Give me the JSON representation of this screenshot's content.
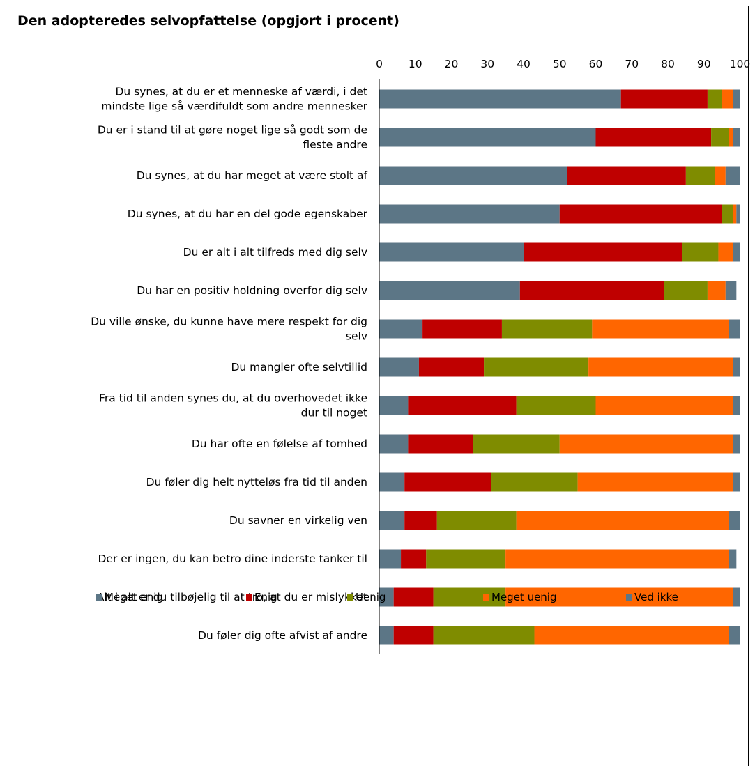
{
  "chart_data": {
    "type": "bar",
    "orientation": "horizontal",
    "stacked": true,
    "title": "Den adopteredes selvopfattelse (opgjort i procent)",
    "xlim": [
      0,
      100
    ],
    "xticks": [
      0,
      10,
      20,
      30,
      40,
      50,
      60,
      70,
      80,
      90,
      100
    ],
    "x_axis_position": "top",
    "grid": false,
    "legend_position": "bottom",
    "categories": [
      "Du synes, at du er et menneske af værdi, i det mindste lige så værdifuldt som andre mennesker",
      "Du er i stand til at gøre noget lige så godt som de fleste andre",
      "Du synes, at du har meget at være stolt af",
      "Du synes, at du har en del gode egenskaber",
      "Du er alt i alt tilfreds med dig selv",
      "Du har en positiv holdning overfor dig selv",
      "Du ville ønske, du kunne have mere respekt for dig selv",
      "Du mangler ofte selvtillid",
      "Fra tid til anden synes du, at du overhovedet ikke dur til noget",
      "Du har ofte en følelse af tomhed",
      "Du føler dig helt nytteløs fra tid til anden",
      "Du savner en virkelig ven",
      "Der er ingen, du kan betro dine inderste tanker til",
      "Alt i alt er du tilbøjelig til at tro, at du er mislykket",
      "Du føler dig ofte afvist af andre"
    ],
    "category_lines": [
      [
        "Du synes, at du er et menneske af værdi, i det",
        "mindste lige så værdifuldt som andre mennesker"
      ],
      [
        "Du er i stand til at gøre noget lige så godt som de",
        "fleste andre"
      ],
      [
        "Du synes, at du har meget at være stolt af"
      ],
      [
        "Du synes, at du har en del gode egenskaber"
      ],
      [
        "Du er alt i alt tilfreds med dig selv"
      ],
      [
        "Du har en positiv holdning overfor dig selv"
      ],
      [
        "Du ville ønske, du kunne have mere respekt for dig",
        "selv"
      ],
      [
        "Du mangler ofte selvtillid"
      ],
      [
        "Fra tid til anden synes du, at du overhovedet ikke",
        "dur til noget"
      ],
      [
        "Du har ofte en følelse af tomhed"
      ],
      [
        "Du føler dig helt nytteløs fra tid til anden"
      ],
      [
        "Du savner en virkelig ven"
      ],
      [
        "Der er ingen, du kan betro dine inderste tanker til"
      ],
      [
        "Alt i alt er du tilbøjelig til at tro, at du er mislykket"
      ],
      [
        "Du føler dig ofte afvist af andre"
      ]
    ],
    "series": [
      {
        "name": "Meget enig",
        "color": "#5c7686",
        "values": [
          67,
          60,
          52,
          50,
          40,
          39,
          12,
          11,
          8,
          8,
          7,
          7,
          6,
          4,
          4
        ]
      },
      {
        "name": "Enig",
        "color": "#bf0000",
        "values": [
          24,
          32,
          33,
          45,
          44,
          40,
          22,
          18,
          30,
          18,
          24,
          9,
          7,
          11,
          11
        ]
      },
      {
        "name": "Uenig",
        "color": "#7f8c00",
        "values": [
          4,
          5,
          8,
          3,
          10,
          12,
          25,
          29,
          22,
          24,
          24,
          22,
          22,
          20,
          28
        ]
      },
      {
        "name": "Meget uenig",
        "color": "#ff6600",
        "values": [
          3,
          1,
          3,
          1,
          4,
          5,
          38,
          40,
          38,
          48,
          43,
          59,
          62,
          63,
          54
        ]
      },
      {
        "name": "Ved ikke",
        "color": "#5c7686",
        "values": [
          2,
          2,
          4,
          1,
          2,
          3,
          3,
          2,
          2,
          2,
          2,
          3,
          2,
          2,
          3
        ]
      }
    ]
  }
}
